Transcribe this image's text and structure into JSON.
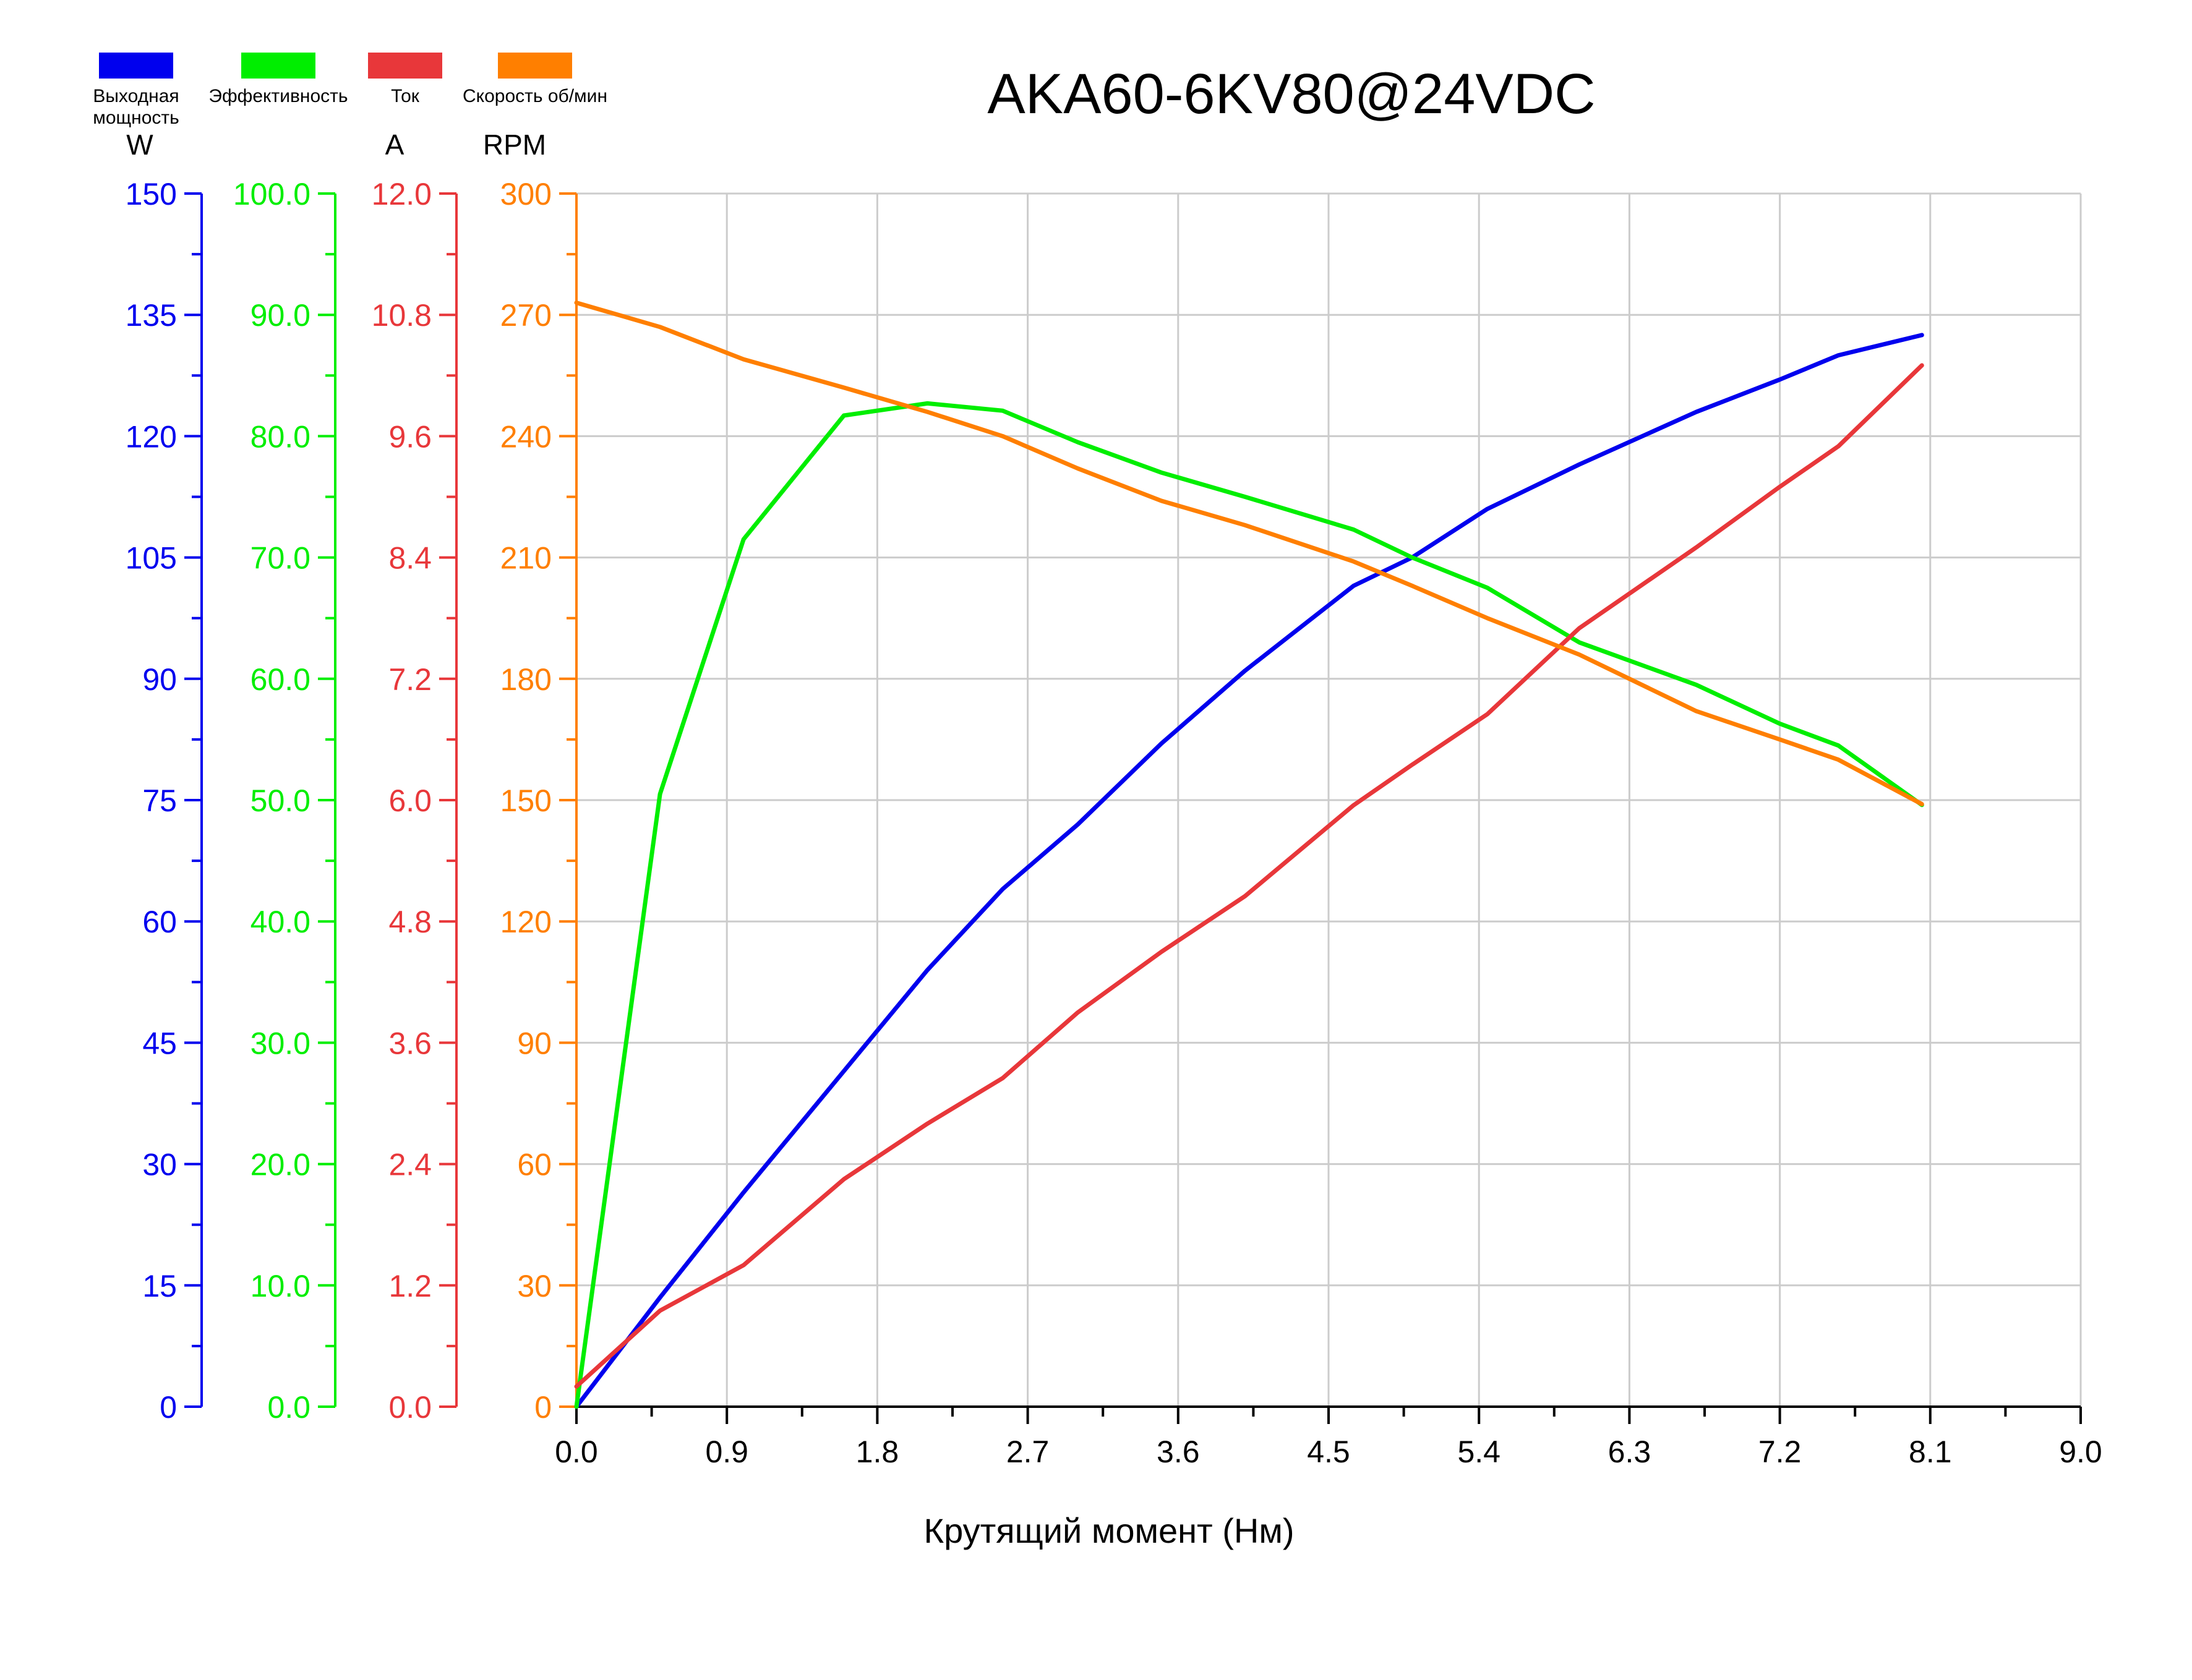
{
  "chart_data": {
    "type": "line",
    "title": "AKA60-6KV80@24VDC",
    "xlabel": "Крутящий момент (Нм)",
    "xlim": [
      0,
      9.0
    ],
    "xticks": [
      "0.0",
      "0.9",
      "1.8",
      "2.7",
      "3.6",
      "4.5",
      "5.4",
      "6.3",
      "7.2",
      "8.1",
      "9.0"
    ],
    "grid": true,
    "legend_position": "top-left",
    "axes": [
      {
        "id": "power",
        "unit": "W",
        "color": "#0000ee",
        "ylim": [
          0,
          150
        ],
        "ticks": [
          "0",
          "15",
          "30",
          "45",
          "60",
          "75",
          "90",
          "105",
          "120",
          "135",
          "150"
        ]
      },
      {
        "id": "efficiency",
        "unit": "",
        "color": "#00ee00",
        "ylim": [
          0,
          100
        ],
        "ticks": [
          "0.0",
          "10.0",
          "20.0",
          "30.0",
          "40.0",
          "50.0",
          "60.0",
          "70.0",
          "80.0",
          "90.0",
          "100.0"
        ]
      },
      {
        "id": "current",
        "unit": "A",
        "color": "#e8373a",
        "ylim": [
          0,
          12
        ],
        "ticks": [
          "0.0",
          "1.2",
          "2.4",
          "3.6",
          "4.8",
          "6.0",
          "7.2",
          "8.4",
          "9.6",
          "10.8",
          "12.0"
        ]
      },
      {
        "id": "speed",
        "unit": "RPM",
        "color": "#ff7f00",
        "ylim": [
          0,
          300
        ],
        "ticks": [
          "0",
          "30",
          "60",
          "90",
          "120",
          "150",
          "180",
          "210",
          "240",
          "270",
          "300"
        ]
      }
    ],
    "series": [
      {
        "name": "Выходная мощность",
        "axis": "power",
        "color": "#0000ee",
        "x": [
          0,
          0.5,
          1.0,
          1.6,
          2.1,
          2.55,
          3.0,
          3.5,
          4.0,
          4.65,
          5.0,
          5.45,
          6.0,
          6.7,
          7.2,
          7.55,
          8.05
        ],
        "y": [
          0,
          13.5,
          26.5,
          41.5,
          54,
          64,
          72,
          82,
          91,
          101.5,
          105,
          111,
          116.5,
          123,
          127,
          130,
          132.5
        ]
      },
      {
        "name": "Эффективность",
        "axis": "efficiency",
        "color": "#00ee00",
        "x": [
          0,
          0.5,
          1.0,
          1.6,
          2.1,
          2.55,
          3.0,
          3.5,
          4.0,
          4.65,
          5.0,
          5.45,
          6.0,
          6.7,
          7.2,
          7.55,
          8.05
        ],
        "y": [
          0,
          50.5,
          71.5,
          81.7,
          82.7,
          82.1,
          79.5,
          77,
          75,
          72.3,
          70,
          67.5,
          63,
          59.5,
          56.3,
          54.5,
          49.6
        ]
      },
      {
        "name": "Ток",
        "axis": "current",
        "color": "#e8373a",
        "x": [
          0,
          0.5,
          1.0,
          1.6,
          2.1,
          2.55,
          3.0,
          3.5,
          4.0,
          4.65,
          5.0,
          5.45,
          6.0,
          6.7,
          7.2,
          7.55,
          8.05
        ],
        "y": [
          0.2,
          0.95,
          1.4,
          2.25,
          2.8,
          3.25,
          3.9,
          4.5,
          5.05,
          5.95,
          6.35,
          6.85,
          7.7,
          8.5,
          9.1,
          9.5,
          10.3
        ]
      },
      {
        "name": "Скорость об/мин",
        "axis": "speed",
        "color": "#ff7f00",
        "x": [
          0,
          0.5,
          1.0,
          1.6,
          2.1,
          2.55,
          3.0,
          3.5,
          4.0,
          4.65,
          5.0,
          5.45,
          6.0,
          6.7,
          7.2,
          7.55,
          8.05
        ],
        "y": [
          273,
          267,
          259,
          252,
          246,
          240,
          232,
          224,
          218,
          209,
          203,
          195,
          186,
          172,
          165,
          160,
          149
        ]
      }
    ]
  }
}
